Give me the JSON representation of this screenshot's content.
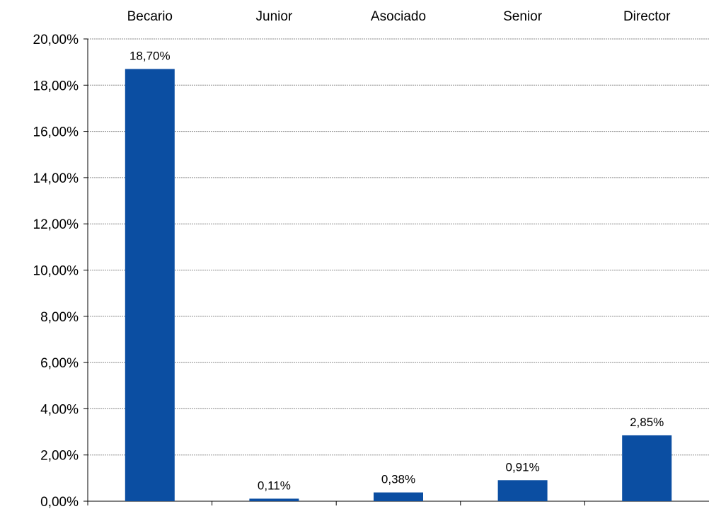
{
  "chart_data": {
    "type": "bar",
    "title": "",
    "xlabel": "",
    "ylabel": "",
    "categories": [
      "Becario",
      "Junior",
      "Asociado",
      "Senior",
      "Director"
    ],
    "values": [
      18.7,
      0.11,
      0.38,
      0.91,
      2.85
    ],
    "data_labels": [
      "18,70%",
      "0,11%",
      "0,38%",
      "0,91%",
      "2,85%"
    ],
    "ylim": [
      0,
      20
    ],
    "yticks": [
      0,
      2,
      4,
      6,
      8,
      10,
      12,
      14,
      16,
      18,
      20
    ],
    "ytick_labels": [
      "0,00%",
      "2,00%",
      "4,00%",
      "6,00%",
      "8,00%",
      "10,00%",
      "12,00%",
      "14,00%",
      "16,00%",
      "18,00%",
      "20,00%"
    ],
    "category_axis_position": "top",
    "grid": true,
    "legend": "none",
    "bar_color": "#0B4EA2"
  }
}
